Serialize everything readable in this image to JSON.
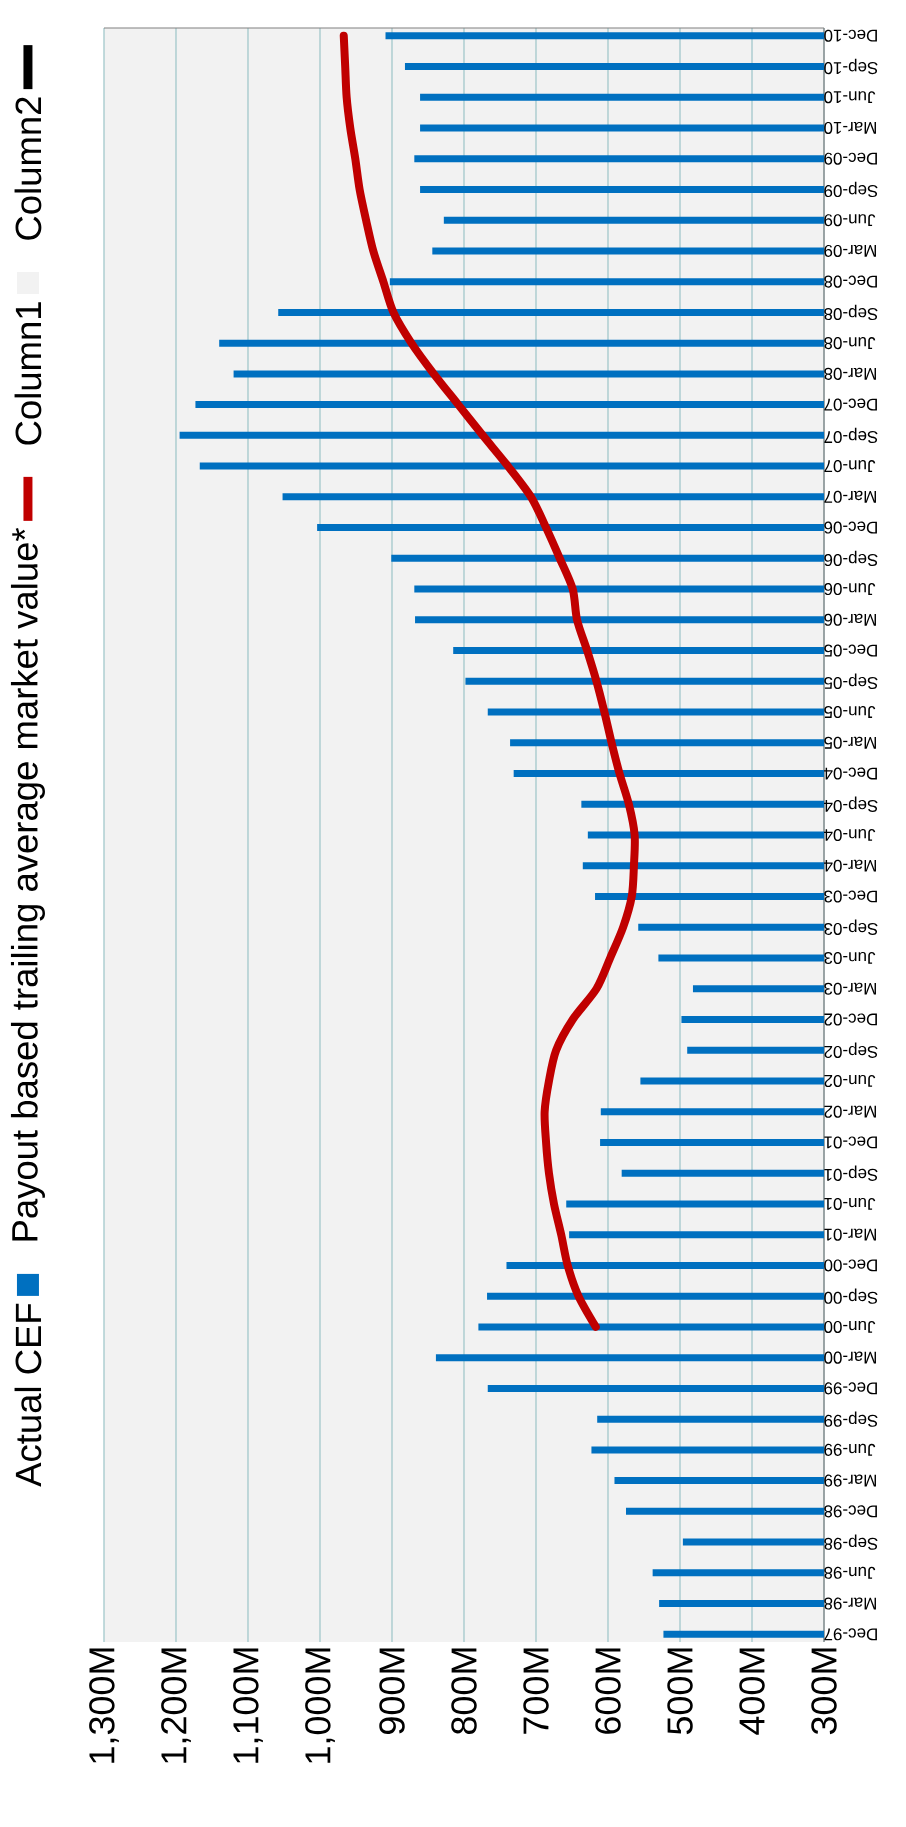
{
  "chart_data": {
    "type": "bar",
    "orientation": "horizontal",
    "categories": [
      "Dec-10",
      "Sep-10",
      "Jun-10",
      "Mar-10",
      "Dec-09",
      "Sep-09",
      "Jun-09",
      "Mar-09",
      "Dec-08",
      "Sep-08",
      "Jun-08",
      "Mar-08",
      "Dec-07",
      "Sep-07",
      "Jun-07",
      "Mar-07",
      "Dec-06",
      "Sep-06",
      "Jun-06",
      "Mar-06",
      "Dec-05",
      "Sep-05",
      "Jun-05",
      "Mar-05",
      "Dec-04",
      "Sep-04",
      "Jun-04",
      "Mar-04",
      "Dec-03",
      "Sep-03",
      "Jun-03",
      "Mar-03",
      "Dec-02",
      "Sep-02",
      "Jun-02",
      "Mar-02",
      "Dec-01",
      "Sep-01",
      "Jun-01",
      "Mar-01",
      "Dec-00",
      "Sep-00",
      "Jun-00",
      "Mar-00",
      "Dec-99",
      "Sep-99",
      "Jun-99",
      "Mar-99",
      "Dec-98",
      "Sep-98",
      "Jun-98",
      "Mar-98",
      "Dec-97"
    ],
    "series": [
      {
        "name": "Actual CEF",
        "type": "bar",
        "color": "#0070c0",
        "values": [
          909,
          882,
          861,
          861,
          869,
          861,
          828,
          844,
          903,
          1058,
          1140,
          1120,
          1173,
          1195,
          1167,
          1052,
          1004,
          901,
          869,
          868,
          815,
          798,
          767,
          736,
          731,
          637,
          628,
          635,
          618,
          558,
          530,
          482,
          498,
          490,
          555,
          610,
          611,
          581,
          658,
          654,
          741,
          768,
          780,
          839,
          767,
          615,
          623,
          591,
          575,
          496,
          538,
          529,
          523
        ]
      },
      {
        "name": "Payout based trailing average market value*",
        "type": "line",
        "color": "#c00000",
        "values": [
          967,
          965,
          963,
          958,
          951,
          945,
          936,
          926,
          912,
          898,
          873,
          842,
          808,
          774,
          739,
          707,
          686,
          667,
          649,
          643,
          629,
          616,
          605,
          595,
          584,
          571,
          563,
          564,
          567,
          579,
          597,
          616,
          649,
          672,
          682,
          688,
          686,
          682,
          675,
          665,
          656,
          641,
          617,
          null,
          null,
          null,
          null,
          null,
          null,
          null,
          null,
          null,
          null
        ]
      },
      {
        "name": "Column1",
        "type": "bar",
        "color": "#f2f2f2",
        "values": [
          null,
          null,
          null,
          null,
          null,
          null,
          null,
          null,
          null,
          null,
          null,
          null,
          null,
          null,
          null,
          null,
          null,
          null,
          null,
          null,
          null,
          null,
          null,
          null,
          null,
          null,
          null,
          null,
          null,
          null,
          null,
          null,
          null,
          null,
          null,
          null,
          null,
          null,
          null,
          null,
          null,
          null,
          null,
          null,
          null,
          null,
          null,
          null,
          null,
          null,
          null,
          null,
          null
        ]
      },
      {
        "name": "Column2",
        "type": "line",
        "color": "#000000",
        "values": [
          null,
          null,
          null,
          null,
          null,
          null,
          null,
          null,
          null,
          null,
          null,
          null,
          null,
          null,
          null,
          null,
          null,
          null,
          null,
          null,
          null,
          null,
          null,
          null,
          null,
          null,
          null,
          null,
          null,
          null,
          null,
          null,
          null,
          null,
          null,
          null,
          null,
          null,
          null,
          null,
          null,
          null,
          null,
          null,
          null,
          null,
          null,
          null,
          null,
          null,
          null,
          null,
          null
        ]
      }
    ],
    "xlim": [
      1300,
      300
    ],
    "xticks": [
      {
        "value": 1300,
        "label": "1,300M"
      },
      {
        "value": 1200,
        "label": "1,200M"
      },
      {
        "value": 1100,
        "label": "1,100M"
      },
      {
        "value": 1000,
        "label": "1,000M"
      },
      {
        "value": 900,
        "label": "900M"
      },
      {
        "value": 800,
        "label": "800M"
      },
      {
        "value": 700,
        "label": "700M"
      },
      {
        "value": 600,
        "label": "600M"
      },
      {
        "value": 500,
        "label": "500M"
      },
      {
        "value": 400,
        "label": "400M"
      },
      {
        "value": 300,
        "label": "300M"
      }
    ],
    "grid": "x",
    "legend": "left"
  }
}
